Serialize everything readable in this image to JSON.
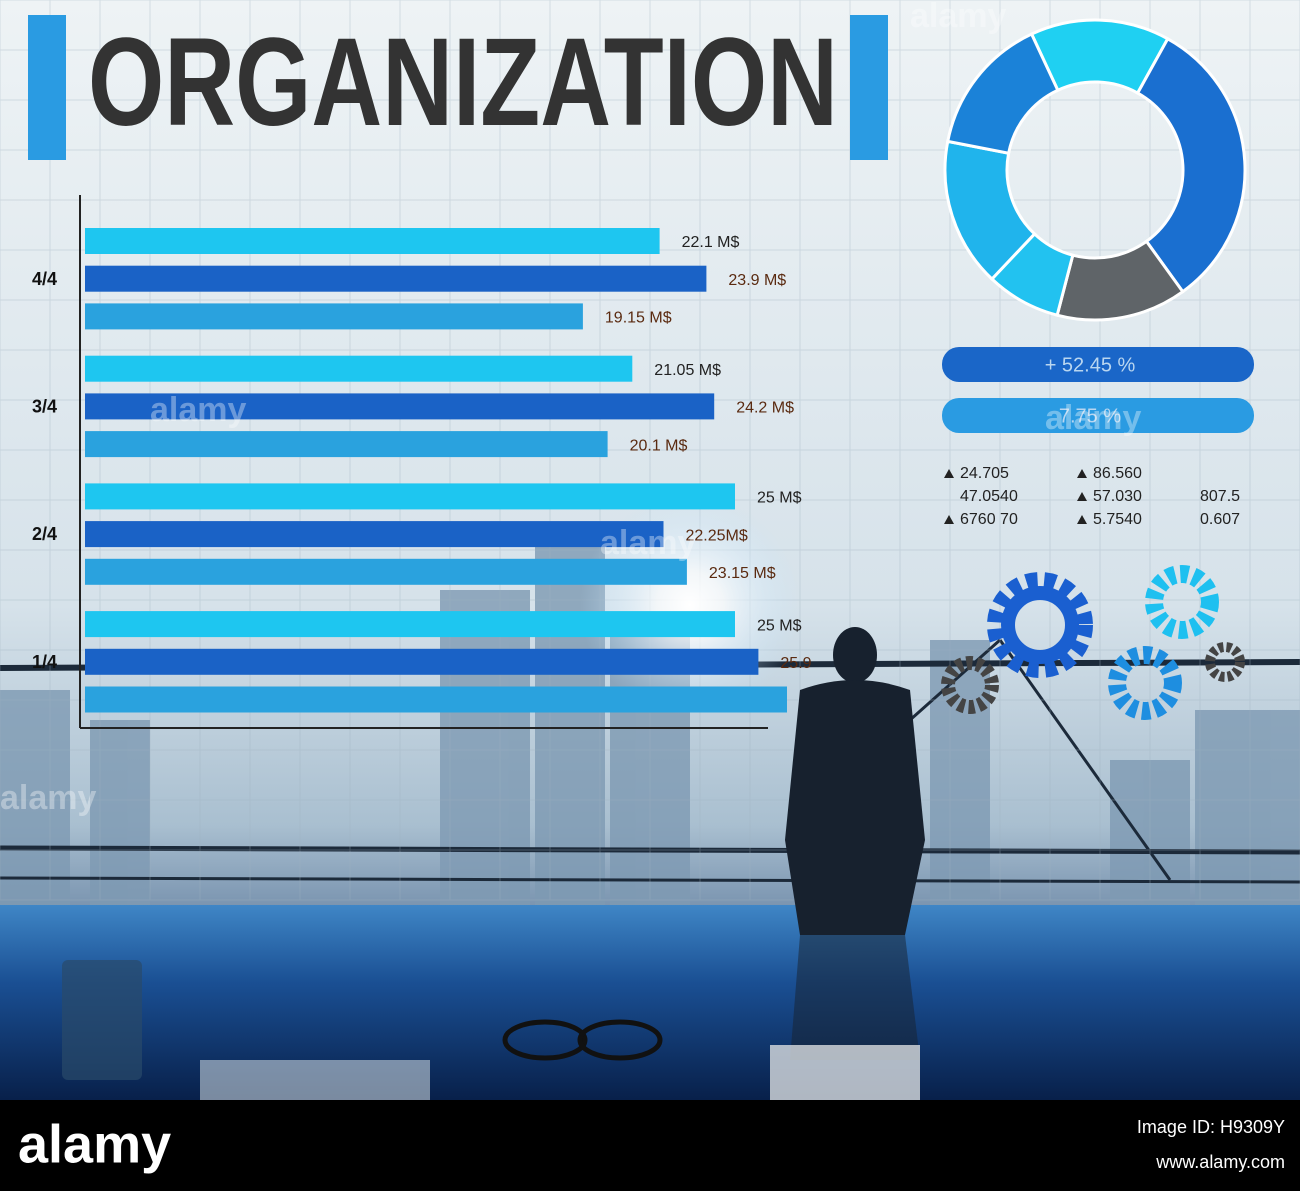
{
  "header": {
    "title": "ORGANIZATION"
  },
  "chart_data": [
    {
      "type": "bar",
      "categories": [
        "4/4",
        "3/4",
        "2/4",
        "1/4"
      ],
      "series": [
        {
          "color": "#1ec6f0",
          "values": [
            22.1,
            21.05,
            25,
            25
          ],
          "value_labels": [
            "22.1 M$",
            "21.05 M$",
            "25 M$",
            "25 M$"
          ]
        },
        {
          "color": "#1a62c6",
          "values": [
            23.9,
            24.2,
            22.25,
            25.9
          ],
          "value_labels": [
            "23.9 M$",
            "24.2 M$",
            "22.25M$",
            "25.9"
          ]
        },
        {
          "color": "#2aa2de",
          "values": [
            19.15,
            20.1,
            23.15,
            27
          ],
          "value_labels": [
            "19.15 M$",
            "20.1 M$",
            "23.15 M$",
            null
          ]
        }
      ]
    },
    {
      "type": "pie",
      "values": [
        15,
        32,
        14,
        8,
        16,
        15
      ],
      "colors": [
        "#1fd0f2",
        "#1a6fd0",
        "#5f6468",
        "#22c2f0",
        "#20b4ec",
        "#1b82d8"
      ]
    }
  ],
  "stats": {
    "pills": [
      {
        "label": "+ 52.45 %",
        "color": "#1a66c8"
      },
      {
        "label": "7.75 %",
        "color": "#2a9be2"
      }
    ],
    "rows": [
      [
        "24.705",
        "86.560",
        null
      ],
      [
        "47.0540",
        "57.030",
        "807.5"
      ],
      [
        "6760 70",
        "5.7540",
        "0.607"
      ]
    ]
  },
  "watermark": "alamy",
  "footer": {
    "logo": "alamy",
    "image_id": "Image ID: H9309Y",
    "url": "www.alamy.com"
  }
}
